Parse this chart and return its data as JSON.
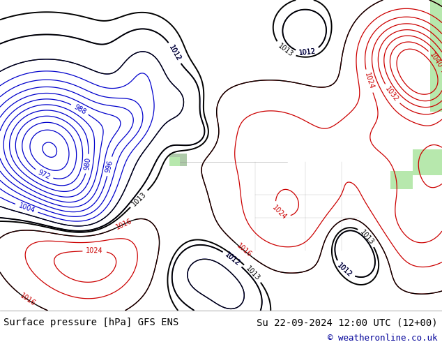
{
  "title_left": "Surface pressure [hPa] GFS ENS",
  "title_right": "Su 22-09-2024 12:00 UTC (12+00)",
  "copyright": "© weatheronline.co.uk",
  "bg_color": "#c8c8c8",
  "land_color": "#b8e8a8",
  "mountain_color": "#b0b0b0",
  "water_color": "#c8c8c8",
  "contour_color_main": "#000000",
  "contour_color_low": "#0000cc",
  "contour_color_high": "#cc0000",
  "label_fontsize": 8,
  "footer_fontsize": 10,
  "copyright_fontsize": 9,
  "figsize": [
    6.34,
    4.9
  ],
  "dpi": 100,
  "extent": [
    -175,
    -52,
    17,
    84
  ]
}
